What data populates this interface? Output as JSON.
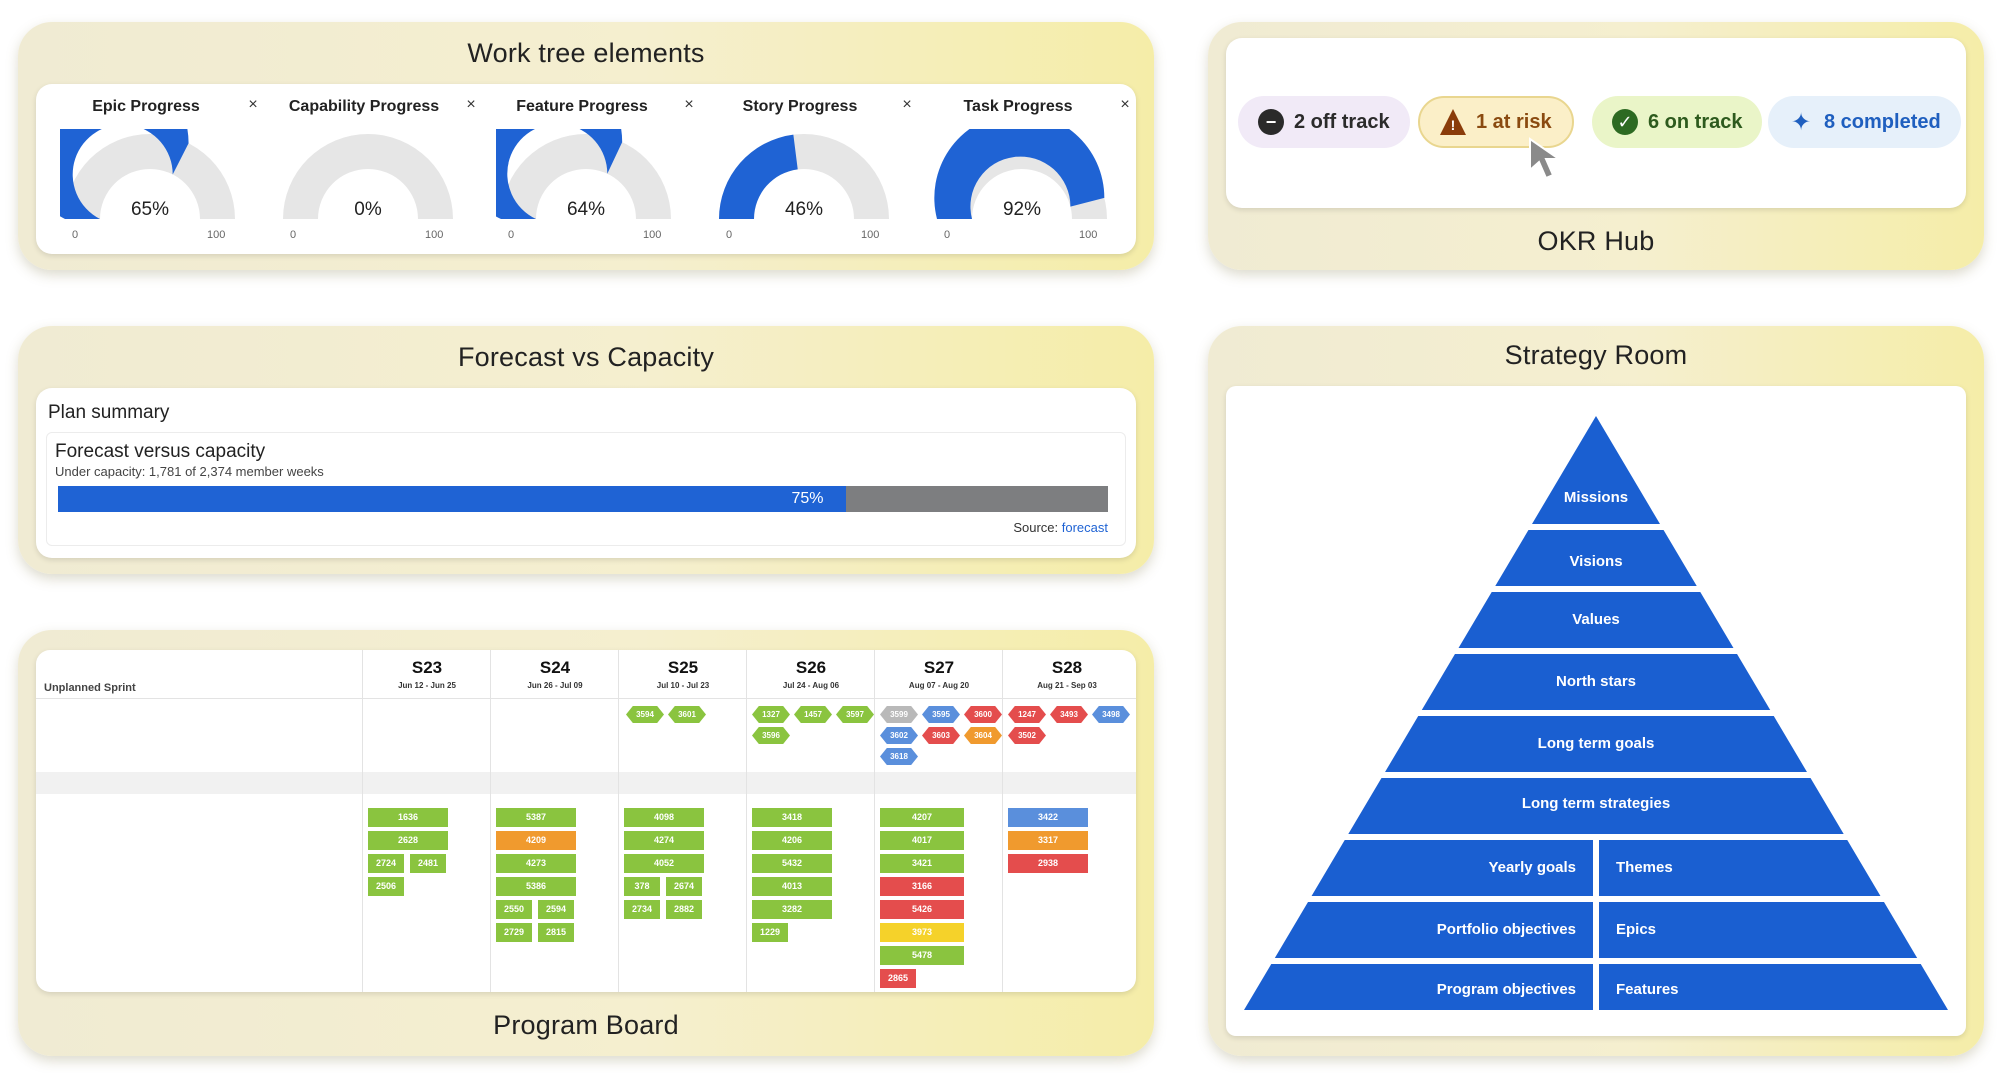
{
  "work_tree": {
    "title": "Work tree elements",
    "gauges": [
      {
        "title": "Epic Progress",
        "value": 65,
        "label": "65%",
        "min": "0",
        "max": "100"
      },
      {
        "title": "Capability Progress",
        "value": 0,
        "label": "0%",
        "min": "0",
        "max": "100"
      },
      {
        "title": "Feature Progress",
        "value": 64,
        "label": "64%",
        "min": "0",
        "max": "100"
      },
      {
        "title": "Story Progress",
        "value": 46,
        "label": "46%",
        "min": "0",
        "max": "100"
      },
      {
        "title": "Task Progress",
        "value": 92,
        "label": "92%",
        "min": "0",
        "max": "100"
      }
    ],
    "close_symbol": "×",
    "colors": {
      "fill": "#1f63d4",
      "track": "#e6e6e6"
    }
  },
  "okr": {
    "title": "OKR Hub",
    "pills": [
      {
        "label": "2 off track",
        "icon": "minus-circle-icon",
        "glyph": "−"
      },
      {
        "label": "1 at risk",
        "icon": "warning-icon",
        "glyph": "!"
      },
      {
        "label": "6 on track",
        "icon": "check-circle-icon",
        "glyph": "✓"
      },
      {
        "label": "8 completed",
        "icon": "sparkle-icon",
        "glyph": "✦"
      }
    ],
    "colors": {
      "off_track_bg": "#f1eaf7",
      "at_risk_bg": "#fbefc8",
      "on_track_bg": "#eaf5c8",
      "completed_bg": "#e6f0fa"
    }
  },
  "forecast": {
    "title": "Forecast vs Capacity",
    "plan_summary": "Plan summary",
    "chart_title": "Forecast versus capacity",
    "subtitle": "Under capacity: 1,781 of 2,374 member weeks",
    "percent": 75,
    "percent_label": "75%",
    "source_label": "Source:",
    "source_link": "forecast"
  },
  "program_board": {
    "title": "Program Board",
    "unplanned": "Unplanned Sprint",
    "sprints": [
      {
        "name": "S23",
        "dates": "Jun 12 - Jun 25"
      },
      {
        "name": "S24",
        "dates": "Jun 26 - Jul 09"
      },
      {
        "name": "S25",
        "dates": "Jul 10 - Jul 23"
      },
      {
        "name": "S26",
        "dates": "Jul 24 - Aug 06"
      },
      {
        "name": "S27",
        "dates": "Aug 07 - Aug 20"
      },
      {
        "name": "S28",
        "dates": "Aug 21 - Sep 03"
      }
    ],
    "top_items": [
      [
        "3594",
        "3601"
      ],
      [
        "1327",
        "1457",
        "3597",
        "3596"
      ],
      [
        "3599",
        "3595",
        "3600",
        "3602",
        "3603",
        "3604",
        "3618"
      ],
      [
        "1247",
        "3493",
        "3498",
        "3502"
      ]
    ],
    "col_items": [
      [
        "1636",
        "2628",
        "2724",
        "2481",
        "2506"
      ],
      [
        "5387",
        "4209",
        "4273",
        "5386",
        "2550",
        "2594",
        "2729",
        "2815"
      ],
      [
        "4098",
        "4274",
        "4052",
        "378",
        "2674",
        "2734",
        "2882"
      ],
      [
        "3418",
        "4206",
        "5432",
        "4013",
        "3282",
        "1229"
      ],
      [
        "4207",
        "4017",
        "3421",
        "3166",
        "5426",
        "3973",
        "5478",
        "2865"
      ],
      [
        "3422",
        "3317",
        "2938"
      ]
    ]
  },
  "strategy": {
    "title": "Strategy Room",
    "levels": [
      "Missions",
      "Visions",
      "Values",
      "North stars",
      "Long term goals",
      "Long term strategies"
    ],
    "split_levels": [
      {
        "left": "Yearly goals",
        "right": "Themes"
      },
      {
        "left": "Portfolio objectives",
        "right": "Epics"
      },
      {
        "left": "Program objectives",
        "right": "Features"
      }
    ],
    "color": "#1a5fd1"
  }
}
